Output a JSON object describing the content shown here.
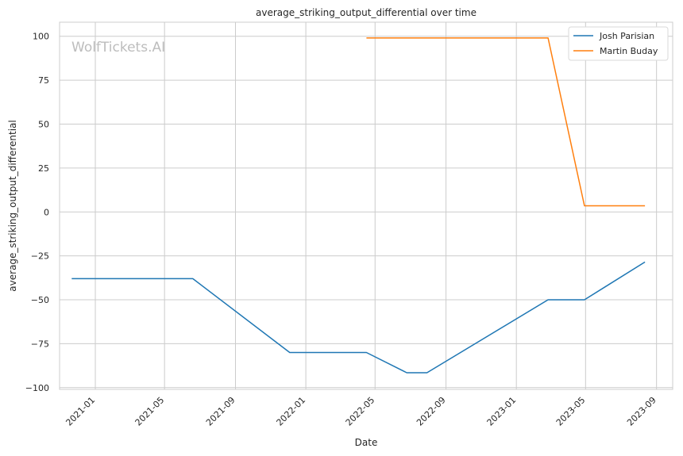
{
  "watermark": "WolfTickets.AI",
  "chart_data": {
    "type": "line",
    "title": "average_striking_output_differential over time",
    "xlabel": "Date",
    "ylabel": "average_striking_output_differential",
    "x_axis_type": "date",
    "xlim": [
      "2020-10-31",
      "2023-09-29"
    ],
    "ylim": [
      -101,
      108
    ],
    "x_ticks": [
      "2021-01",
      "2021-05",
      "2021-09",
      "2022-01",
      "2022-05",
      "2022-09",
      "2023-01",
      "2023-05",
      "2023-09"
    ],
    "y_ticks": [
      -100,
      -75,
      -50,
      -25,
      0,
      25,
      50,
      75,
      100
    ],
    "grid": true,
    "legend": "top-right",
    "series": [
      {
        "name": "Josh Parisian",
        "color": "#1f77b4",
        "points": [
          {
            "x": "2020-11-21",
            "y": -38
          },
          {
            "x": "2021-06-19",
            "y": -38
          },
          {
            "x": "2021-12-04",
            "y": -80
          },
          {
            "x": "2022-04-16",
            "y": -80
          },
          {
            "x": "2022-06-25",
            "y": -91.5
          },
          {
            "x": "2022-07-30",
            "y": -91.5
          },
          {
            "x": "2023-02-25",
            "y": -50
          },
          {
            "x": "2023-04-29",
            "y": -50
          },
          {
            "x": "2023-08-12",
            "y": -28.5
          }
        ]
      },
      {
        "name": "Martin Buday",
        "color": "#ff7f0e",
        "points": [
          {
            "x": "2022-04-16",
            "y": 99
          },
          {
            "x": "2023-02-25",
            "y": 99
          },
          {
            "x": "2023-04-29",
            "y": 3.5
          },
          {
            "x": "2023-08-12",
            "y": 3.5
          }
        ]
      }
    ]
  }
}
